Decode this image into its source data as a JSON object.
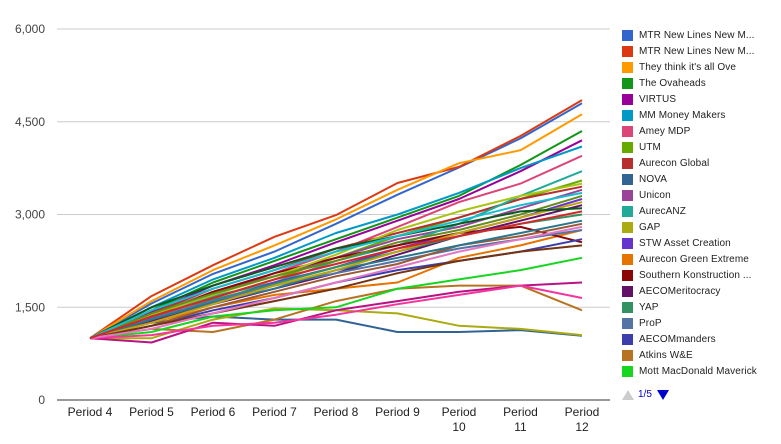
{
  "chart_data": {
    "type": "line",
    "title": "",
    "xlabel": "",
    "ylabel": "",
    "ylim": [
      0,
      6000
    ],
    "grid": true,
    "legend_position": "right",
    "y_ticks": [
      {
        "value": 0,
        "label": "0"
      },
      {
        "value": 1500,
        "label": "1,500"
      },
      {
        "value": 3000,
        "label": "3,000"
      },
      {
        "value": 4500,
        "label": "4,500"
      },
      {
        "value": 6000,
        "label": "6,000"
      }
    ],
    "categories": [
      "Period 4",
      "Period 5",
      "Period 6",
      "Period 7",
      "Period 8",
      "Period 9",
      "Period 10",
      "Period 11",
      "Period 12"
    ],
    "series": [
      {
        "name": "MTR New Lines New M...",
        "color": "#3366cc",
        "values": [
          1000,
          1560,
          2040,
          2400,
          2850,
          3320,
          3760,
          4230,
          4800
        ]
      },
      {
        "name": "MTR New Lines New M...",
        "color": "#dc3912",
        "values": [
          1000,
          1680,
          2180,
          2640,
          2990,
          3510,
          3770,
          4270,
          4850
        ]
      },
      {
        "name": "They think it's all Ove",
        "color": "#ff9900",
        "values": [
          1000,
          1600,
          2100,
          2500,
          2920,
          3400,
          3830,
          4040,
          4620
        ]
      },
      {
        "name": "The Ovaheads",
        "color": "#109618",
        "values": [
          1000,
          1450,
          1900,
          2250,
          2600,
          2950,
          3300,
          3800,
          4350
        ]
      },
      {
        "name": "VIRTUS",
        "color": "#990099",
        "values": [
          1000,
          1420,
          1850,
          2180,
          2550,
          2900,
          3250,
          3700,
          4200
        ]
      },
      {
        "name": "MM Money Makers",
        "color": "#0099c6",
        "values": [
          1000,
          1500,
          1950,
          2300,
          2700,
          3000,
          3350,
          3750,
          4100
        ]
      },
      {
        "name": "Amey MDP",
        "color": "#dd4477",
        "values": [
          1000,
          1300,
          1700,
          2050,
          2400,
          2800,
          3200,
          3500,
          3950
        ]
      },
      {
        "name": "UTM",
        "color": "#66aa00",
        "values": [
          1000,
          1350,
          1650,
          1950,
          2300,
          2650,
          2950,
          3250,
          3550
        ]
      },
      {
        "name": "Aurecon Global",
        "color": "#b82e2e",
        "values": [
          1000,
          1400,
          1800,
          2100,
          2450,
          2700,
          2950,
          3250,
          3450
        ]
      },
      {
        "name": "NOVA",
        "color": "#316395",
        "values": [
          1000,
          1250,
          1350,
          1300,
          1300,
          1100,
          1100,
          1130,
          1040
        ]
      },
      {
        "name": "Unicon",
        "color": "#994499",
        "values": [
          1000,
          1380,
          1750,
          2000,
          2300,
          2600,
          2800,
          3100,
          3400
        ]
      },
      {
        "name": "AurecANZ",
        "color": "#22aa99",
        "values": [
          1000,
          1330,
          1680,
          1900,
          2250,
          2500,
          2850,
          3300,
          3700
        ]
      },
      {
        "name": "GAP",
        "color": "#aaaa11",
        "values": [
          1000,
          1000,
          1300,
          1480,
          1450,
          1400,
          1200,
          1150,
          1050
        ]
      },
      {
        "name": "STW Asset Creation",
        "color": "#6633cc",
        "values": [
          1000,
          1300,
          1600,
          1900,
          2150,
          2450,
          2700,
          2950,
          3250
        ]
      },
      {
        "name": "Aurecon Green Extreme",
        "color": "#e67300",
        "values": [
          1000,
          1250,
          1500,
          1700,
          1800,
          1900,
          2300,
          2500,
          2750
        ]
      },
      {
        "name": "Southern Konstruction ...",
        "color": "#8b0707",
        "values": [
          1000,
          1350,
          1750,
          2050,
          2300,
          2500,
          2700,
          2800,
          2550
        ]
      },
      {
        "name": "AECOMeritocracy",
        "color": "#651067",
        "values": [
          1000,
          1280,
          1550,
          1800,
          2050,
          2350,
          2650,
          2900,
          3150
        ]
      },
      {
        "name": "YAP",
        "color": "#329262",
        "values": [
          1000,
          1300,
          1620,
          1880,
          2150,
          2400,
          2650,
          2850,
          3000
        ]
      },
      {
        "name": "ProP",
        "color": "#5574a6",
        "values": [
          1000,
          1320,
          1600,
          1850,
          2050,
          2250,
          2450,
          2600,
          2750
        ]
      },
      {
        "name": "AECOMmanders",
        "color": "#3b3eac",
        "values": [
          1000,
          1200,
          1450,
          1650,
          1900,
          2100,
          2250,
          2400,
          2600
        ]
      },
      {
        "name": "Atkins W&E",
        "color": "#b77322",
        "values": [
          1000,
          1150,
          1100,
          1300,
          1600,
          1800,
          1850,
          1850,
          1450
        ]
      },
      {
        "name": "Mott MacDonald Maverick",
        "color": "#16d620",
        "values": [
          1000,
          1100,
          1350,
          1450,
          1500,
          1800,
          1950,
          2100,
          2300
        ]
      },
      {
        "name": "",
        "color": "#b91383",
        "values": [
          1000,
          930,
          1250,
          1200,
          1450,
          1600,
          1750,
          1850,
          1900
        ]
      },
      {
        "name": "",
        "color": "#f4359e",
        "values": [
          1000,
          1050,
          1200,
          1250,
          1380,
          1550,
          1700,
          1850,
          1650
        ]
      },
      {
        "name": "",
        "color": "#9c5935",
        "values": [
          1000,
          1200,
          1500,
          1750,
          2000,
          2200,
          2500,
          2650,
          2850
        ]
      },
      {
        "name": "",
        "color": "#a9c413",
        "values": [
          1000,
          1380,
          1700,
          2000,
          2350,
          2750,
          3050,
          3300,
          3500
        ]
      },
      {
        "name": "",
        "color": "#2a778d",
        "values": [
          1000,
          1300,
          1580,
          1800,
          2100,
          2300,
          2500,
          2700,
          2900
        ]
      },
      {
        "name": "",
        "color": "#668d1c",
        "values": [
          1000,
          1400,
          1720,
          2000,
          2250,
          2550,
          2750,
          3000,
          3300
        ]
      },
      {
        "name": "",
        "color": "#bea413",
        "values": [
          1000,
          1250,
          1550,
          1850,
          2100,
          2400,
          2700,
          2950,
          3200
        ]
      },
      {
        "name": "",
        "color": "#0c5922",
        "values": [
          1000,
          1500,
          1850,
          2150,
          2450,
          2650,
          2850,
          3050,
          3100
        ]
      },
      {
        "name": "",
        "color": "#743411",
        "values": [
          1000,
          1200,
          1400,
          1600,
          1800,
          2050,
          2250,
          2400,
          2500
        ]
      },
      {
        "name": "",
        "color": "#e377c2",
        "values": [
          1000,
          1150,
          1400,
          1650,
          1900,
          2150,
          2400,
          2600,
          2800
        ]
      },
      {
        "name": "",
        "color": "#17becf",
        "values": [
          1000,
          1450,
          1800,
          2100,
          2400,
          2650,
          2900,
          3150,
          3350
        ]
      },
      {
        "name": "",
        "color": "#d62728",
        "values": [
          1000,
          1350,
          1650,
          1950,
          2200,
          2450,
          2650,
          2850,
          3050
        ]
      }
    ]
  },
  "legend": {
    "items": [
      {
        "label": "MTR New Lines New M...",
        "color": "#3366cc"
      },
      {
        "label": "MTR New Lines New M...",
        "color": "#dc3912"
      },
      {
        "label": "They think it's all Ove",
        "color": "#ff9900"
      },
      {
        "label": "The Ovaheads",
        "color": "#109618"
      },
      {
        "label": "VIRTUS",
        "color": "#990099"
      },
      {
        "label": "MM Money Makers",
        "color": "#0099c6"
      },
      {
        "label": "Amey MDP",
        "color": "#dd4477"
      },
      {
        "label": "UTM",
        "color": "#66aa00"
      },
      {
        "label": "Aurecon Global",
        "color": "#b82e2e"
      },
      {
        "label": "NOVA",
        "color": "#316395"
      },
      {
        "label": "Unicon",
        "color": "#994499"
      },
      {
        "label": "AurecANZ",
        "color": "#22aa99"
      },
      {
        "label": "GAP",
        "color": "#aaaa11"
      },
      {
        "label": "STW Asset Creation",
        "color": "#6633cc"
      },
      {
        "label": "Aurecon Green Extreme",
        "color": "#e67300"
      },
      {
        "label": "Southern Konstruction ...",
        "color": "#8b0707"
      },
      {
        "label": "AECOMeritocracy",
        "color": "#651067"
      },
      {
        "label": "YAP",
        "color": "#329262"
      },
      {
        "label": "ProP",
        "color": "#5574a6"
      },
      {
        "label": "AECOMmanders",
        "color": "#3b3eac"
      },
      {
        "label": "Atkins W&E",
        "color": "#b77322"
      },
      {
        "label": "Mott MacDonald Maverick",
        "color": "#16d620"
      }
    ],
    "pager": {
      "text": "1/5",
      "prev_enabled": false,
      "next_enabled": true
    }
  }
}
